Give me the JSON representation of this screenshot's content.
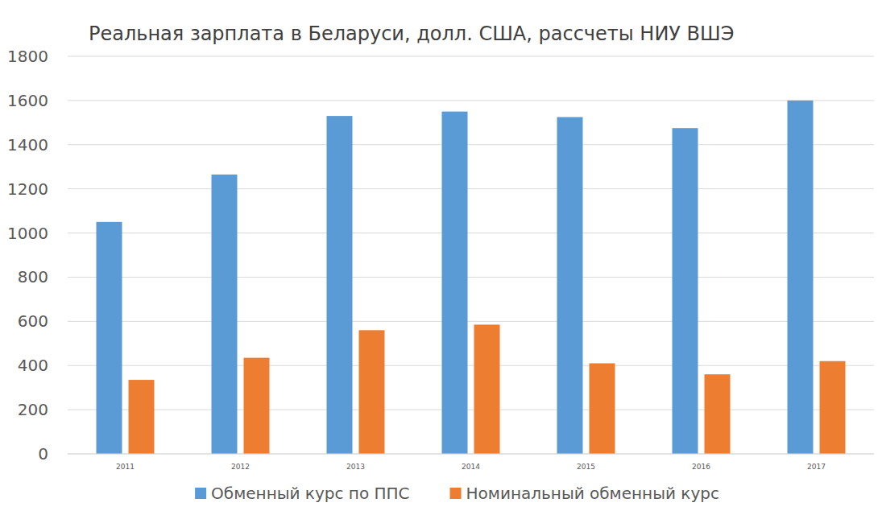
{
  "chart_data": {
    "type": "bar",
    "title": "Реальная зарплата в Беларуси, долл. США, рассчеты НИУ ВШЭ",
    "categories": [
      "2011",
      "2012",
      "2013",
      "2014",
      "2015",
      "2016",
      "2017"
    ],
    "series": [
      {
        "name": "Обменный курс по ППС",
        "color": "#5b9bd5",
        "values": [
          1050,
          1265,
          1530,
          1550,
          1525,
          1475,
          1600
        ]
      },
      {
        "name": "Номинальный обменный курс",
        "color": "#ed7d31",
        "values": [
          335,
          435,
          560,
          585,
          410,
          360,
          420
        ]
      }
    ],
    "ylim": [
      0,
      1800
    ],
    "yticks": [
      0,
      200,
      400,
      600,
      800,
      1000,
      1200,
      1400,
      1600,
      1800
    ],
    "grid": true,
    "legend": "bottom"
  }
}
